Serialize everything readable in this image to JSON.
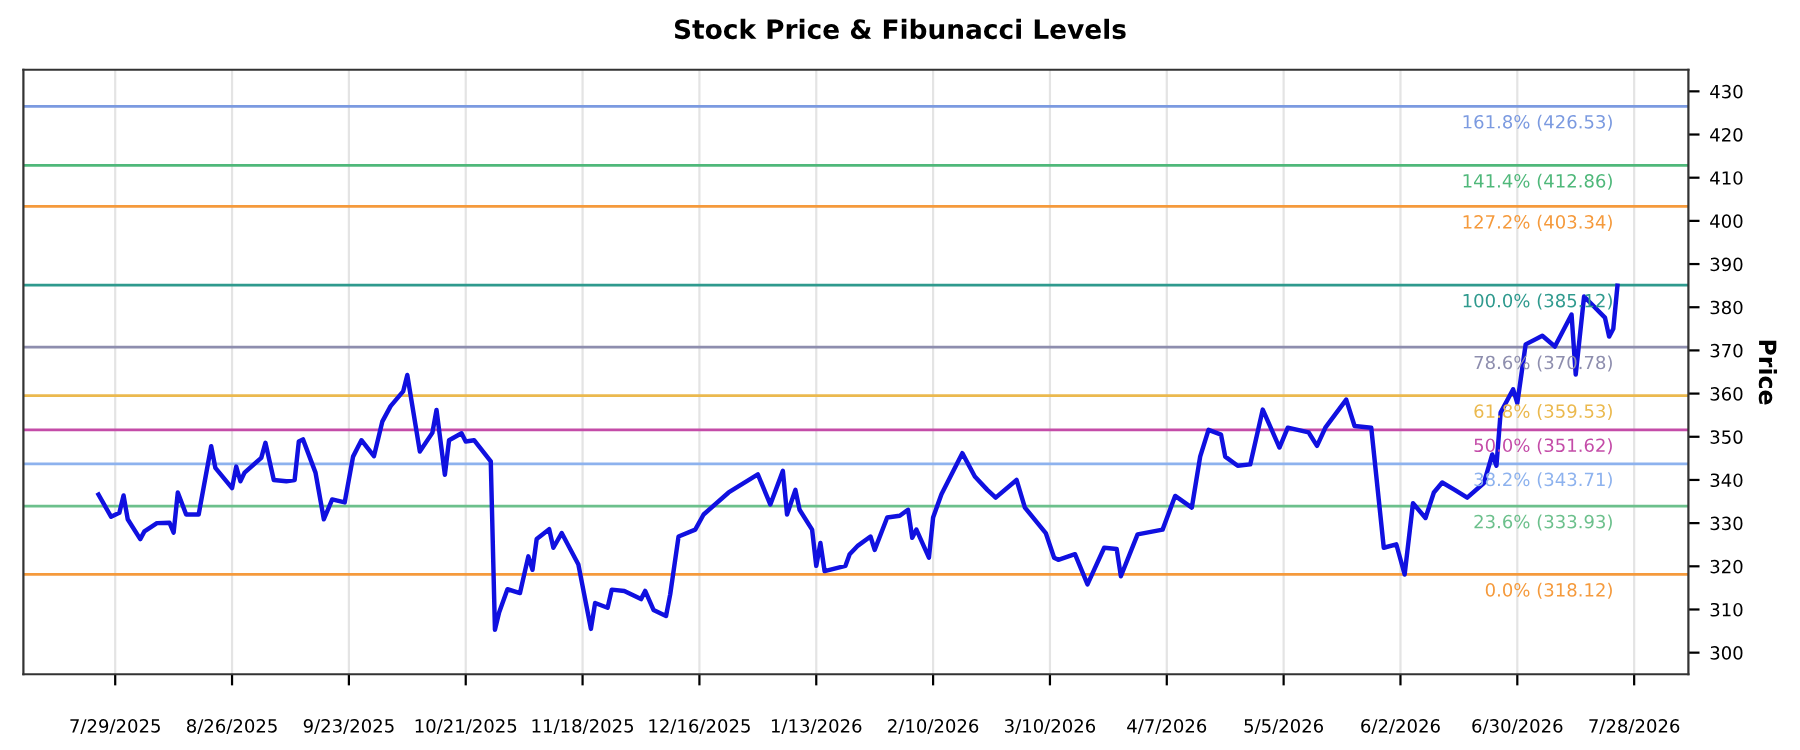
{
  "chart_data": {
    "type": "line",
    "title": "Stock Price & Fibunacci Levels",
    "ylabel": "Price",
    "x": [
      "2025-07-25",
      "2025-07-28",
      "2025-07-30",
      "2025-07-31",
      "2025-08-01",
      "2025-08-04",
      "2025-08-05",
      "2025-08-08",
      "2025-08-11",
      "2025-08-12",
      "2025-08-13",
      "2025-08-15",
      "2025-08-18",
      "2025-08-21",
      "2025-08-22",
      "2025-08-26",
      "2025-08-27",
      "2025-08-28",
      "2025-08-29",
      "2025-09-02",
      "2025-09-03",
      "2025-09-05",
      "2025-09-08",
      "2025-09-10",
      "2025-09-11",
      "2025-09-12",
      "2025-09-15",
      "2025-09-17",
      "2025-09-19",
      "2025-09-22",
      "2025-09-24",
      "2025-09-26",
      "2025-09-29",
      "2025-10-01",
      "2025-10-03",
      "2025-10-06",
      "2025-10-07",
      "2025-10-10",
      "2025-10-13",
      "2025-10-14",
      "2025-10-16",
      "2025-10-17",
      "2025-10-20",
      "2025-10-21",
      "2025-10-23",
      "2025-10-27",
      "2025-10-28",
      "2025-10-29",
      "2025-10-31",
      "2025-11-03",
      "2025-11-05",
      "2025-11-06",
      "2025-11-07",
      "2025-11-10",
      "2025-11-11",
      "2025-11-13",
      "2025-11-17",
      "2025-11-20",
      "2025-11-21",
      "2025-11-24",
      "2025-11-25",
      "2025-11-28",
      "2025-12-02",
      "2025-12-03",
      "2025-12-05",
      "2025-12-08",
      "2025-12-09",
      "2025-12-11",
      "2025-12-15",
      "2025-12-17",
      "2025-12-23",
      "2025-12-30",
      "2026-01-02",
      "2026-01-05",
      "2026-01-06",
      "2026-01-08",
      "2026-01-09",
      "2026-01-12",
      "2026-01-13",
      "2026-01-14",
      "2026-01-15",
      "2026-01-20",
      "2026-01-21",
      "2026-01-23",
      "2026-01-26",
      "2026-01-27",
      "2026-01-30",
      "2026-02-02",
      "2026-02-04",
      "2026-02-05",
      "2026-02-06",
      "2026-02-09",
      "2026-02-10",
      "2026-02-12",
      "2026-02-17",
      "2026-02-20",
      "2026-02-23",
      "2026-02-25",
      "2026-03-02",
      "2026-03-04",
      "2026-03-09",
      "2026-03-11",
      "2026-03-12",
      "2026-03-16",
      "2026-03-19",
      "2026-03-23",
      "2026-03-26",
      "2026-03-27",
      "2026-03-31",
      "2026-04-06",
      "2026-04-09",
      "2026-04-13",
      "2026-04-15",
      "2026-04-17",
      "2026-04-20",
      "2026-04-21",
      "2026-04-24",
      "2026-04-27",
      "2026-04-30",
      "2026-05-04",
      "2026-05-06",
      "2026-05-11",
      "2026-05-13",
      "2026-05-15",
      "2026-05-20",
      "2026-05-22",
      "2026-05-26",
      "2026-05-29",
      "2026-06-01",
      "2026-06-03",
      "2026-06-05",
      "2026-06-08",
      "2026-06-10",
      "2026-06-12",
      "2026-06-15",
      "2026-06-18",
      "2026-06-22",
      "2026-06-24",
      "2026-06-25",
      "2026-06-26",
      "2026-06-29",
      "2026-06-30",
      "2026-07-02",
      "2026-07-06",
      "2026-07-09",
      "2026-07-13",
      "2026-07-14",
      "2026-07-16",
      "2026-07-21",
      "2026-07-22",
      "2026-07-23",
      "2026-07-24"
    ],
    "series": [
      {
        "color": "#1010e0",
        "values": [
          336.6,
          331.5,
          332.4,
          336.4,
          330.9,
          326.3,
          328.1,
          330.0,
          330.1,
          327.8,
          337.1,
          332.0,
          332.0,
          347.8,
          342.8,
          338.1,
          343.1,
          339.7,
          341.7,
          345.1,
          348.6,
          340.0,
          339.7,
          340.0,
          348.9,
          349.4,
          341.7,
          330.9,
          335.5,
          334.8,
          345.4,
          349.2,
          345.5,
          353.5,
          357.1,
          360.5,
          364.3,
          346.6,
          350.9,
          356.2,
          341.2,
          349.2,
          350.8,
          348.9,
          349.2,
          344.3,
          305.3,
          309.3,
          314.7,
          313.8,
          322.3,
          319.2,
          326.3,
          328.6,
          324.3,
          327.7,
          320.4,
          305.5,
          311.5,
          310.4,
          314.6,
          314.3,
          312.4,
          314.3,
          309.9,
          308.5,
          313.5,
          326.9,
          328.5,
          332.0,
          337.1,
          341.3,
          334.3,
          342.1,
          332.0,
          337.7,
          333.1,
          328.5,
          320.1,
          325.4,
          318.9,
          320.1,
          322.8,
          324.8,
          326.9,
          323.8,
          331.3,
          331.7,
          333.1,
          326.6,
          328.5,
          322.0,
          331.3,
          336.7,
          346.2,
          340.8,
          337.7,
          335.9,
          340.0,
          333.6,
          327.7,
          322.0,
          321.5,
          322.8,
          315.8,
          324.3,
          324.0,
          317.7,
          327.4,
          328.5,
          336.3,
          333.6,
          345.4,
          351.6,
          350.5,
          345.4,
          343.3,
          343.6,
          356.3,
          347.5,
          352.1,
          351.0,
          347.9,
          352.1,
          358.6,
          352.5,
          352.1,
          324.3,
          325.1,
          318.1,
          334.6,
          331.2,
          337.1,
          339.4,
          337.7,
          335.9,
          339.3,
          345.9,
          343.3,
          355.6,
          361.0,
          357.8,
          371.4,
          373.4,
          370.9,
          378.3,
          364.4,
          382.5,
          377.6,
          373.2,
          375.0,
          385.0
        ]
      }
    ],
    "xlim": [
      "2025-07-07",
      "2026-08-10"
    ],
    "xticks": [
      {
        "value": "2025-07-29",
        "label": "7/29/2025"
      },
      {
        "value": "2025-08-26",
        "label": "8/26/2025"
      },
      {
        "value": "2025-09-23",
        "label": "9/23/2025"
      },
      {
        "value": "2025-10-21",
        "label": "10/21/2025"
      },
      {
        "value": "2025-11-18",
        "label": "11/18/2025"
      },
      {
        "value": "2025-12-16",
        "label": "12/16/2025"
      },
      {
        "value": "2026-01-13",
        "label": "1/13/2026"
      },
      {
        "value": "2026-02-10",
        "label": "2/10/2026"
      },
      {
        "value": "2026-03-10",
        "label": "3/10/2026"
      },
      {
        "value": "2026-04-07",
        "label": "4/7/2026"
      },
      {
        "value": "2026-05-05",
        "label": "5/5/2026"
      },
      {
        "value": "2026-06-02",
        "label": "6/2/2026"
      },
      {
        "value": "2026-06-30",
        "label": "6/30/2026"
      },
      {
        "value": "2026-07-28",
        "label": "7/28/2026"
      }
    ],
    "ylim": [
      295,
      435
    ],
    "yticks": [
      300,
      310,
      320,
      330,
      340,
      350,
      360,
      370,
      380,
      390,
      400,
      410,
      420,
      430
    ],
    "grid": "x",
    "marker": "none",
    "line_style": "solid",
    "ref_lines": [
      {
        "axis": "y",
        "value": 426.53,
        "label": "161.8% (426.53)",
        "color": "#7b9ae0"
      },
      {
        "axis": "y",
        "value": 412.86,
        "label": "141.4% (412.86)",
        "color": "#4fb87a"
      },
      {
        "axis": "y",
        "value": 403.34,
        "label": "127.2% (403.34)",
        "color": "#f59a3c"
      },
      {
        "axis": "y",
        "value": 385.12,
        "label": "100.0% (385.12)",
        "color": "#2f9a8e"
      },
      {
        "axis": "y",
        "value": 370.78,
        "label": "78.6% (370.78)",
        "color": "#8e8eae"
      },
      {
        "axis": "y",
        "value": 359.53,
        "label": "61.8% (359.53)",
        "color": "#ebb94e"
      },
      {
        "axis": "y",
        "value": 351.62,
        "label": "50.0% (351.62)",
        "color": "#c44ca8"
      },
      {
        "axis": "y",
        "value": 343.71,
        "label": "38.2% (343.71)",
        "color": "#8db2ee"
      },
      {
        "axis": "y",
        "value": 333.93,
        "label": "23.6% (333.93)",
        "color": "#6cc08c"
      },
      {
        "axis": "y",
        "value": 318.12,
        "label": "0.0% (318.12)",
        "color": "#f59a3c"
      }
    ]
  }
}
